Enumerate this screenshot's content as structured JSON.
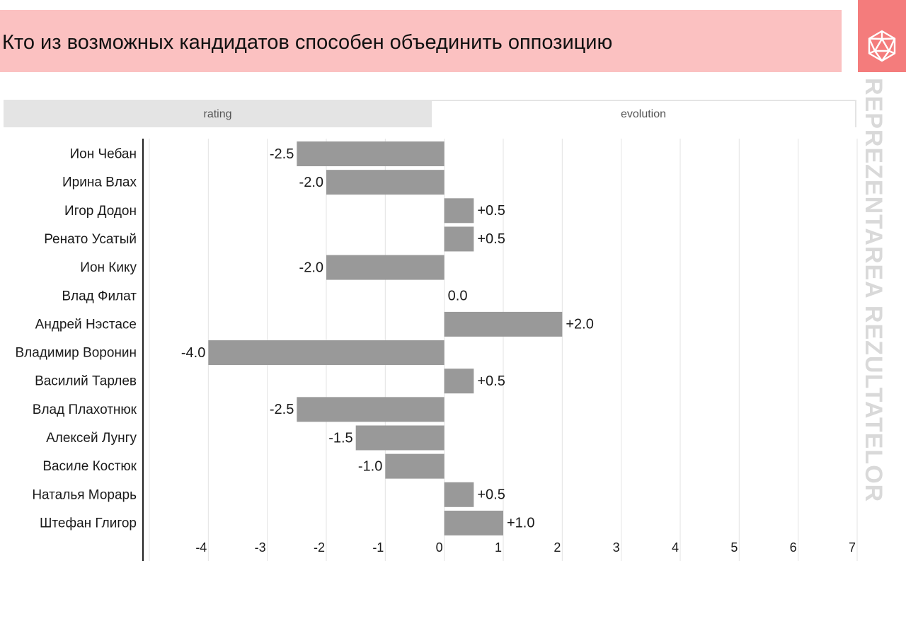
{
  "header": {
    "title": "Кто из возможных кандидатов способен объединить оппозицию",
    "brand_text": "REPREZENTAREA REZULTATELOR",
    "brand_icon": "dice-d20-icon",
    "brand_color": "#f47c7c",
    "title_bg_color": "#fbc1c1"
  },
  "tabs": [
    {
      "label": "rating",
      "active": false
    },
    {
      "label": "evolution",
      "active": true
    }
  ],
  "chart_data": {
    "type": "bar",
    "orientation": "horizontal",
    "categories": [
      "Ион Чебан",
      "Ирина Влах",
      "Игор Додон",
      "Ренато Усатый",
      "Ион Кику",
      "Влад Филат",
      "Андрей Нэстасе",
      "Владимир Воронин",
      "Василий Тарлев",
      "Влад Плахотнюк",
      "Алексей Лунгу",
      "Василе Костюк",
      "Наталья Морарь",
      "Штефан Глигор"
    ],
    "values": [
      -2.5,
      -2.0,
      0.5,
      0.5,
      -2.0,
      0.0,
      2.0,
      -4.0,
      0.5,
      -2.5,
      -1.5,
      -1.0,
      0.5,
      1.0
    ],
    "data_labels": [
      "-2.5",
      "-2.0",
      "+0.5",
      "+0.5",
      "-2.0",
      "0.0",
      "+2.0",
      "-4.0",
      "+0.5",
      "-2.5",
      "-1.5",
      "-1.0",
      "+0.5",
      "+1.0"
    ],
    "xticks": [
      -4,
      -3,
      -2,
      -1,
      0,
      1,
      2,
      3,
      4,
      5,
      6,
      7
    ],
    "xlim": [
      -5,
      7
    ],
    "grid": true,
    "bar_color": "#999999"
  }
}
